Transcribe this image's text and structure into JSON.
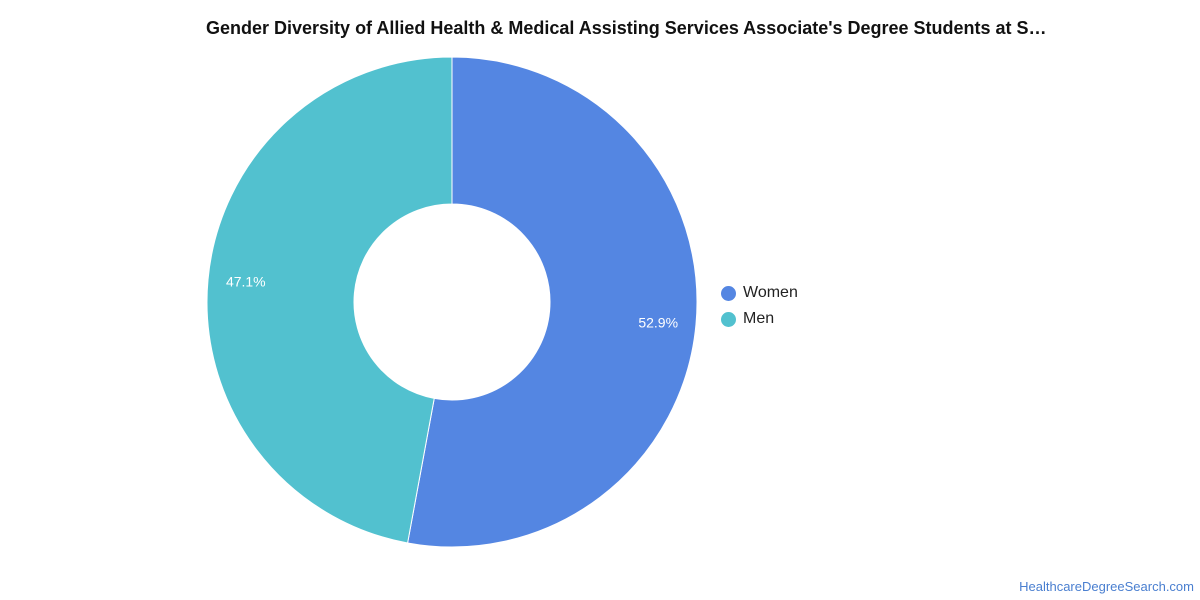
{
  "chart_data": {
    "type": "pie",
    "title": "Gender Diversity of Allied Health & Medical Assisting Services Associate's Degree Students at S…",
    "categories": [
      "Women",
      "Men"
    ],
    "values": [
      52.9,
      47.1
    ],
    "value_labels": [
      "52.9%",
      "47.1%"
    ],
    "colors": [
      "#5486e2",
      "#52c1cf"
    ],
    "donut": true,
    "legend_position": "right"
  },
  "legend": {
    "items": [
      {
        "label": "Women",
        "color": "#5486e2"
      },
      {
        "label": "Men",
        "color": "#52c1cf"
      }
    ]
  },
  "watermark": {
    "text": "HealthcareDegreeSearch.com"
  }
}
